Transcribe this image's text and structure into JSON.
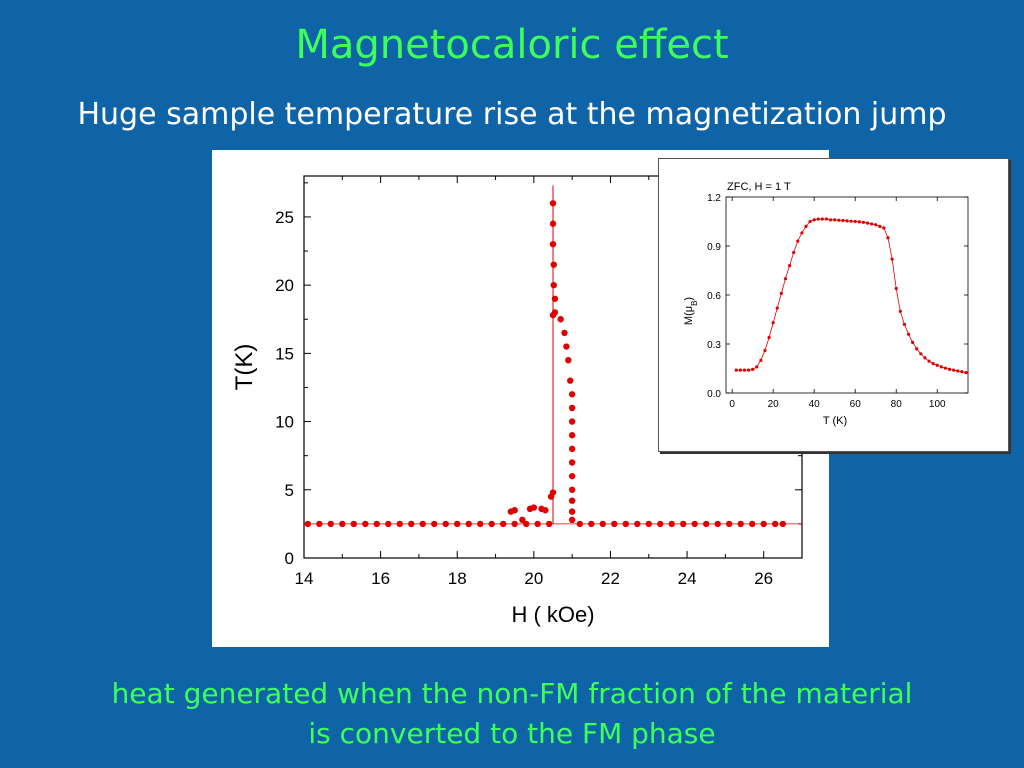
{
  "slide": {
    "title": "Magnetocaloric effect",
    "subtitle": "Huge sample temperature rise at the magnetization jump",
    "caption_line1": "heat generated when the non-FM fraction of the material",
    "caption_line2": "is converted to the FM phase"
  },
  "colors": {
    "background": "#0f64a8",
    "title": "#3dff5a",
    "subtitle": "#ffffff",
    "data": "#e00000"
  },
  "chart_data": [
    {
      "type": "scatter",
      "title": "",
      "xlabel": "H ( kOe)",
      "ylabel": "T(K)",
      "xlim": [
        14,
        27
      ],
      "ylim": [
        0,
        28
      ],
      "xticks": [
        14,
        16,
        18,
        20,
        22,
        24,
        26
      ],
      "yticks": [
        0,
        5,
        10,
        15,
        20,
        25
      ],
      "series": [
        {
          "points": [
            [
              14.1,
              2.5
            ],
            [
              14.4,
              2.5
            ],
            [
              14.7,
              2.5
            ],
            [
              15.0,
              2.5
            ],
            [
              15.3,
              2.5
            ],
            [
              15.6,
              2.5
            ],
            [
              15.9,
              2.5
            ],
            [
              16.2,
              2.5
            ],
            [
              16.5,
              2.5
            ],
            [
              16.8,
              2.5
            ],
            [
              17.1,
              2.5
            ],
            [
              17.4,
              2.5
            ],
            [
              17.7,
              2.5
            ],
            [
              18.0,
              2.5
            ],
            [
              18.3,
              2.5
            ],
            [
              18.6,
              2.5
            ],
            [
              18.9,
              2.5
            ],
            [
              19.2,
              2.5
            ],
            [
              19.5,
              2.5
            ],
            [
              19.8,
              2.5
            ],
            [
              20.1,
              2.5
            ],
            [
              20.4,
              2.5
            ],
            [
              19.4,
              3.4
            ],
            [
              19.5,
              3.5
            ],
            [
              19.7,
              2.8
            ],
            [
              19.9,
              3.6
            ],
            [
              20.0,
              3.7
            ],
            [
              20.2,
              3.6
            ],
            [
              20.3,
              3.5
            ],
            [
              20.45,
              4.5
            ],
            [
              20.5,
              4.8
            ],
            [
              20.5,
              26.0
            ],
            [
              20.5,
              24.5
            ],
            [
              20.5,
              23.0
            ],
            [
              20.52,
              21.5
            ],
            [
              20.52,
              20.0
            ],
            [
              20.55,
              19.0
            ],
            [
              20.55,
              18.0
            ],
            [
              20.5,
              17.8
            ],
            [
              20.7,
              17.5
            ],
            [
              20.8,
              16.5
            ],
            [
              20.85,
              15.5
            ],
            [
              20.9,
              14.5
            ],
            [
              20.95,
              13.0
            ],
            [
              21.0,
              12.0
            ],
            [
              21.0,
              11.0
            ],
            [
              21.0,
              10.0
            ],
            [
              21.0,
              9.0
            ],
            [
              21.0,
              8.0
            ],
            [
              21.0,
              7.0
            ],
            [
              21.0,
              6.0
            ],
            [
              21.0,
              5.0
            ],
            [
              21.0,
              4.2
            ],
            [
              21.0,
              3.4
            ],
            [
              21.0,
              2.8
            ],
            [
              21.2,
              2.5
            ],
            [
              21.5,
              2.5
            ],
            [
              21.8,
              2.5
            ],
            [
              22.1,
              2.5
            ],
            [
              22.4,
              2.5
            ],
            [
              22.7,
              2.5
            ],
            [
              23.0,
              2.5
            ],
            [
              23.3,
              2.5
            ],
            [
              23.6,
              2.5
            ],
            [
              23.9,
              2.5
            ],
            [
              24.2,
              2.5
            ],
            [
              24.5,
              2.5
            ],
            [
              24.8,
              2.5
            ],
            [
              25.1,
              2.5
            ],
            [
              25.4,
              2.5
            ],
            [
              25.7,
              2.5
            ],
            [
              26.0,
              2.5
            ],
            [
              26.3,
              2.5
            ],
            [
              26.5,
              2.5
            ]
          ]
        }
      ]
    },
    {
      "type": "line",
      "title": "ZFC, H = 1 T",
      "xlabel": "T (K)",
      "ylabel": "M(μB)",
      "xlim": [
        -3,
        115
      ],
      "ylim": [
        0,
        1.2
      ],
      "xticks": [
        0,
        20,
        40,
        60,
        80,
        100
      ],
      "yticks": [
        "0.0",
        "0.3",
        "0.6",
        "0.9",
        "1.2"
      ],
      "series": [
        {
          "x": [
            2,
            4,
            6,
            8,
            10,
            12,
            14,
            16,
            18,
            20,
            22,
            24,
            26,
            28,
            30,
            32,
            34,
            36,
            38,
            40,
            42,
            44,
            46,
            48,
            50,
            52,
            54,
            56,
            58,
            60,
            62,
            64,
            66,
            68,
            70,
            72,
            74,
            76,
            78,
            80,
            82,
            84,
            86,
            88,
            90,
            92,
            94,
            96,
            98,
            100,
            102,
            104,
            106,
            108,
            110,
            112,
            114
          ],
          "y": [
            0.14,
            0.14,
            0.14,
            0.14,
            0.145,
            0.16,
            0.2,
            0.26,
            0.34,
            0.43,
            0.52,
            0.61,
            0.7,
            0.78,
            0.86,
            0.93,
            0.98,
            1.02,
            1.05,
            1.06,
            1.065,
            1.065,
            1.065,
            1.06,
            1.06,
            1.058,
            1.056,
            1.054,
            1.052,
            1.05,
            1.048,
            1.045,
            1.04,
            1.035,
            1.03,
            1.02,
            1.01,
            0.95,
            0.82,
            0.64,
            0.5,
            0.42,
            0.36,
            0.31,
            0.27,
            0.24,
            0.215,
            0.195,
            0.18,
            0.17,
            0.16,
            0.152,
            0.145,
            0.14,
            0.135,
            0.13,
            0.125
          ]
        }
      ]
    }
  ]
}
